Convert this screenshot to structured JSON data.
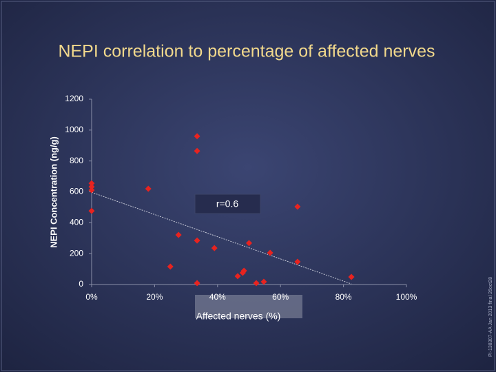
{
  "chart_data": {
    "type": "scatter",
    "title": "NEPI correlation to percentage of affected nerves",
    "xlabel": "Affected nerves (%)",
    "ylabel": "NEPI Concentration (ng/g)",
    "annotation": "r=0.6",
    "footnote": "PI-138307-AA Jan 2013 final 26oct28",
    "color": "#e8231f",
    "x": [
      33.5,
      33.5,
      0,
      0,
      0,
      18,
      0,
      65.4,
      27.6,
      33.5,
      39,
      50,
      56.7,
      65.4,
      25,
      48.4,
      48,
      46.4,
      52.3,
      54.7,
      33.5,
      82.5
    ],
    "y": [
      960,
      865,
      655,
      633,
      611,
      620,
      477,
      504,
      321,
      285,
      236,
      268,
      205,
      147,
      116,
      89,
      76,
      54,
      9,
      18,
      9,
      49
    ],
    "trendline": {
      "x": [
        0,
        82.5
      ],
      "y": [
        597,
        4
      ]
    },
    "xlim": [
      0,
      100
    ],
    "ylim": [
      0,
      1200
    ],
    "xticks": [
      {
        "value": 0,
        "label": "0%"
      },
      {
        "value": 20,
        "label": "20%"
      },
      {
        "value": 40,
        "label": "40%"
      },
      {
        "value": 60,
        "label": "60%"
      },
      {
        "value": 80,
        "label": "80%"
      },
      {
        "value": 100,
        "label": "100%"
      }
    ],
    "yticks": [
      0,
      200,
      400,
      600,
      800,
      1000,
      1200
    ]
  }
}
